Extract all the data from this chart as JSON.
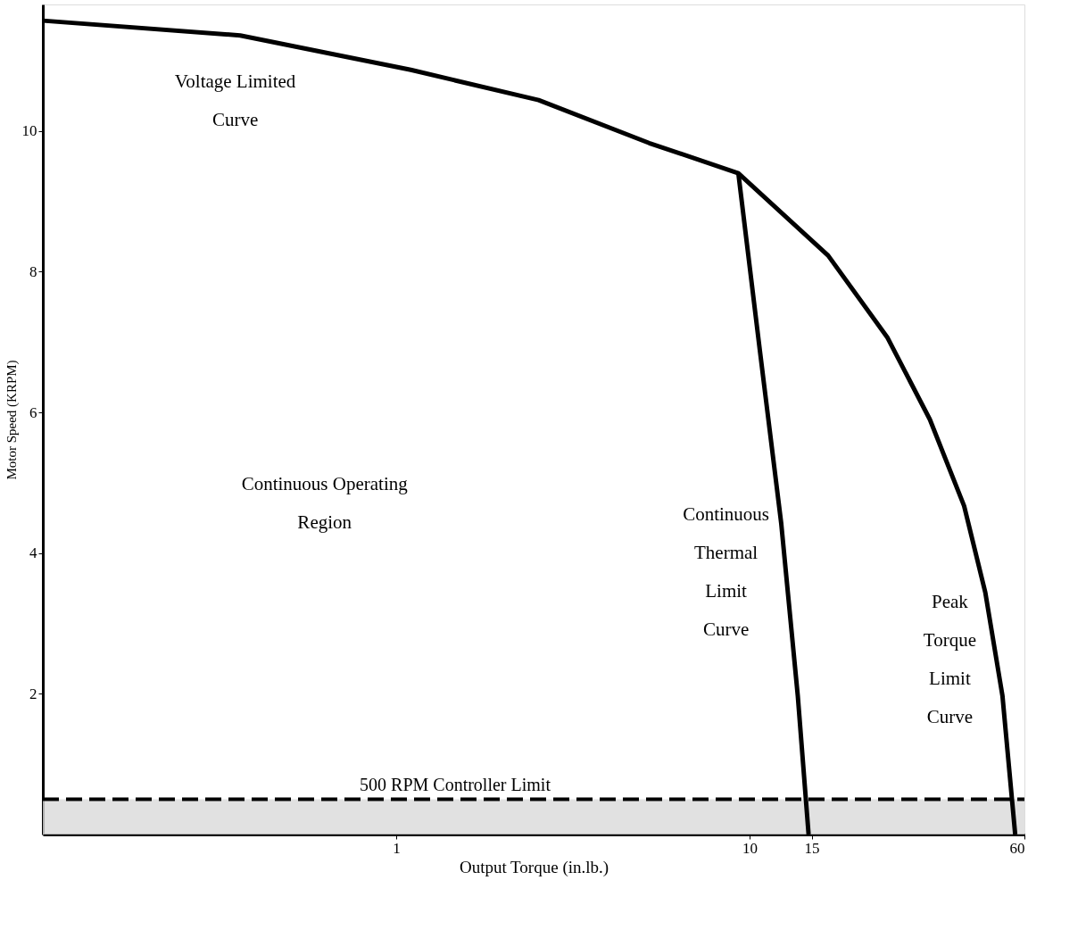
{
  "chart_data": {
    "type": "line",
    "xlabel": "Output Torque (in.lb.)",
    "ylabel": "Motor Speed (KRPM)",
    "log": "x",
    "xlim": [
      0.1,
      60
    ],
    "xticks": [
      1,
      10,
      15,
      60
    ],
    "ylim": [
      0,
      11.8
    ],
    "yticks": [
      2,
      4,
      6,
      8,
      10
    ],
    "grid": false,
    "marker": "none",
    "series": [
      {
        "color": "#000000",
        "line_style": "solid",
        "x": [
          0.1,
          0.362,
          1.1,
          2.53,
          5.2,
          9.3,
          16.7,
          24.6,
          32.4,
          40.5,
          46.5,
          52,
          56.5
        ],
        "values": [
          11.57,
          11.36,
          10.87,
          10.44,
          9.83,
          9.4,
          8.23,
          7.06,
          5.9,
          4.67,
          3.44,
          1.97,
          0
        ]
      },
      {
        "color": "#000000",
        "line_style": "solid",
        "x": [
          9.3,
          10.7,
          12.3,
          13.7,
          14.7
        ],
        "values": [
          9.4,
          6.88,
          4.42,
          1.97,
          0
        ]
      }
    ],
    "ref_lines": [
      {
        "axis": "y",
        "value": 0.5,
        "label": "500 RPM Controller Limit",
        "line_style": "dashed",
        "color": "#000000"
      }
    ],
    "bands": [
      {
        "axis": "y",
        "from": 0,
        "to": 0.5,
        "color": "#d9d9d9"
      }
    ],
    "annotations": [
      "Voltage Limited\nCurve",
      "Continuous Operating\nRegion",
      "Continuous\nThermal\nLimit\nCurve",
      "Peak\nTorque\nLimit\nCurve"
    ]
  }
}
